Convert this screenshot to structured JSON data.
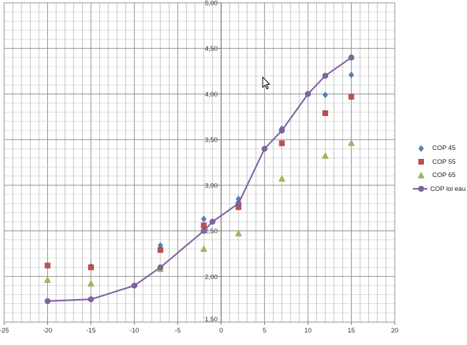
{
  "chart_data": {
    "type": "scatter",
    "title": "",
    "xlabel": "",
    "ylabel": "",
    "xlim": [
      -25,
      20
    ],
    "ylim": [
      1.5,
      5.0
    ],
    "x_ticks": [
      -25,
      -20,
      -15,
      -10,
      -5,
      0,
      5,
      10,
      15,
      20
    ],
    "y_ticks": [
      "1,50",
      "2,00",
      "2,50",
      "3,00",
      "3,50",
      "4,00",
      "4,50",
      "5,00"
    ],
    "y_tick_values": [
      1.5,
      2.0,
      2.5,
      3.0,
      3.5,
      4.0,
      4.5,
      5.0
    ],
    "grid": true,
    "legend_position": "right",
    "series": [
      {
        "name": "COP 45",
        "marker": "diamond",
        "color": "#4f81bd",
        "x": [
          -20,
          -15,
          -7,
          -2,
          2,
          7,
          12,
          15
        ],
        "y": [
          2.12,
          2.11,
          2.34,
          2.63,
          2.85,
          3.62,
          3.99,
          4.21
        ]
      },
      {
        "name": "COP 55",
        "marker": "square",
        "color": "#c0504d",
        "x": [
          -20,
          -15,
          -7,
          -2,
          2,
          7,
          12,
          15
        ],
        "y": [
          2.12,
          2.1,
          2.29,
          2.56,
          2.76,
          3.46,
          3.79,
          3.97
        ]
      },
      {
        "name": "COP 65",
        "marker": "triangle",
        "color": "#9bbb59",
        "x": [
          -20,
          -15,
          -7,
          -2,
          2,
          7,
          12,
          15
        ],
        "y": [
          1.96,
          1.92,
          2.08,
          2.3,
          2.47,
          3.07,
          3.32,
          3.46
        ]
      },
      {
        "name": "COP loi eau",
        "marker": "circle-line",
        "color": "#8064a2",
        "x": [
          -20,
          -15,
          -10,
          -7,
          -2,
          -1,
          2,
          5,
          7,
          10,
          12,
          15
        ],
        "y": [
          1.73,
          1.75,
          1.9,
          2.1,
          2.5,
          2.6,
          2.8,
          3.4,
          3.6,
          4.0,
          4.2,
          4.4
        ]
      }
    ]
  }
}
